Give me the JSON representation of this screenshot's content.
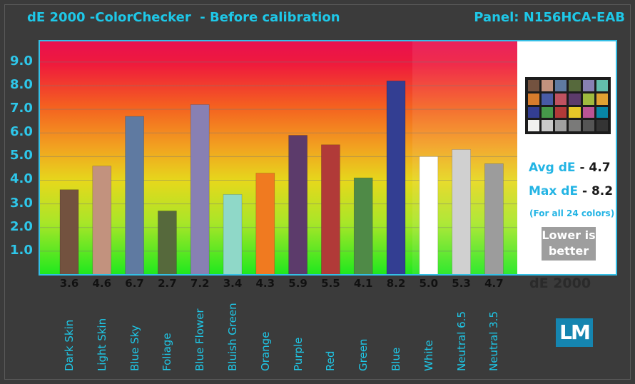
{
  "title": "dE 2000 -ColorChecker  - Before calibration",
  "panel": "Panel: N156HCA-EAB",
  "stats": {
    "avg_label": "Avg dE",
    "avg_value": "- 4.7",
    "max_label": "Max dE",
    "max_value": "- 8.2",
    "note": "(For all 24 colors)",
    "badge_line1": "Lower is",
    "badge_line2": "better",
    "unit_label": "dE 2000"
  },
  "logo_text": "LM",
  "colors": {
    "accent": "#1ec8e8",
    "background": "#3b3b3b"
  },
  "checker_patches": [
    "#73523f",
    "#c2927e",
    "#5f7aa1",
    "#56693c",
    "#8880b3",
    "#63bdac",
    "#d67c2c",
    "#485ba6",
    "#c05260",
    "#5c3b6b",
    "#9fba3f",
    "#e0a232",
    "#333e92",
    "#469a4a",
    "#b13a38",
    "#e6c728",
    "#bb5495",
    "#0886a6",
    "#f2f2f0",
    "#c9c9c9",
    "#a0a0a0",
    "#7a7a79",
    "#555555",
    "#343434"
  ],
  "chart_data": {
    "type": "bar",
    "title": "dE 2000 -ColorChecker  - Before calibration",
    "categories": [
      "Dark Skin",
      "Light Skin",
      "Blue Sky",
      "Foliage",
      "Blue Flower",
      "Bluish Green",
      "Orange",
      "Purple",
      "Red",
      "Green",
      "Blue",
      "White",
      "Neutral 6.5",
      "Neutral 3.5"
    ],
    "values": [
      3.6,
      4.6,
      6.7,
      2.7,
      7.2,
      3.4,
      4.3,
      5.9,
      5.5,
      4.1,
      8.2,
      5.0,
      5.3,
      4.7
    ],
    "value_labels": [
      "3.6",
      "4.6",
      "6.7",
      "2.7",
      "7.2",
      "3.4",
      "4.3",
      "5.9",
      "5.5",
      "4.1",
      "8.2",
      "5.0",
      "5.3",
      "4.7"
    ],
    "bar_colors": [
      "#73523f",
      "#c2927e",
      "#5f7aa1",
      "#56693c",
      "#8880b3",
      "#8fd8c8",
      "#f07a20",
      "#5c3b6b",
      "#b13a38",
      "#4f8a47",
      "#333e92",
      "#ffffff",
      "#d0d0d0",
      "#9c9c9c"
    ],
    "yticks": [
      "1.0",
      "2.0",
      "3.0",
      "4.0",
      "5.0",
      "6.0",
      "7.0",
      "8.0",
      "9.0"
    ],
    "ylim": [
      0,
      9.9
    ],
    "xlabel": "dE 2000",
    "ylabel": "",
    "grid": true,
    "legend": "none"
  }
}
